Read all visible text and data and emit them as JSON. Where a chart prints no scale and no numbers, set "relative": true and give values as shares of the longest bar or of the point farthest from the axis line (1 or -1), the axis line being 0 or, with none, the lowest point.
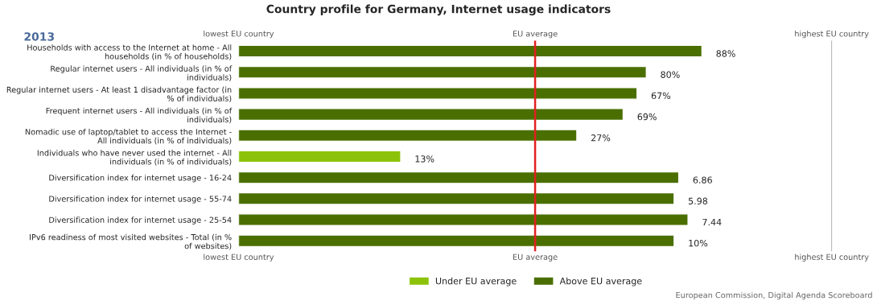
{
  "chart_data": {
    "type": "bar",
    "orientation": "horizontal",
    "title": "Country profile for Germany, Internet usage indicators",
    "subtitle": "2013",
    "categories": [
      "Households with access to the Internet at home - All\nhouseholds (in % of households)",
      "Regular internet users - All individuals (in % of\nindividuals)",
      "Regular internet users - At least 1 disadvantage factor (in\n% of individuals)",
      "Frequent internet users - All individuals (in % of\nindividuals)",
      "Nomadic use of laptop/tablet to access the Internet -\nAll individuals (in % of individuals)",
      "Individuals who have never used the internet - All\nindividuals (in % of individuals)",
      "Diversification index for internet usage - 16-24",
      "Diversification index for internet usage - 55-74",
      "Diversification index for internet usage - 25-54",
      "IPv6 readiness of most visited websites - Total (in %\nof websites)"
    ],
    "series": [
      {
        "name": "Under EU average",
        "color": "#8cc30a",
        "values": [
          null,
          null,
          null,
          null,
          null,
          0.35,
          null,
          null,
          null,
          null
        ]
      },
      {
        "name": "Above EU average",
        "color": "#4a6f00",
        "values": [
          1,
          0.88,
          0.86,
          0.83,
          0.73,
          null,
          0.95,
          0.94,
          0.97,
          0.94
        ]
      }
    ],
    "value_labels": [
      "88%",
      "80%",
      "67%",
      "69%",
      "27%",
      "13%",
      "6.86",
      "5.98",
      "7.44",
      "10%"
    ],
    "relative": true,
    "ref_lines": [
      {
        "axis": "x",
        "value": 0.64,
        "label": "EU average",
        "color": "#e02020"
      },
      {
        "axis": "x",
        "value": 1.28,
        "label": "highest EU country",
        "color": "#bbbbbb"
      }
    ],
    "legend": "bottom",
    "grid": false,
    "annotations": [
      "lowest EU country",
      "European Commission, Digital Agenda Scoreboard"
    ]
  }
}
